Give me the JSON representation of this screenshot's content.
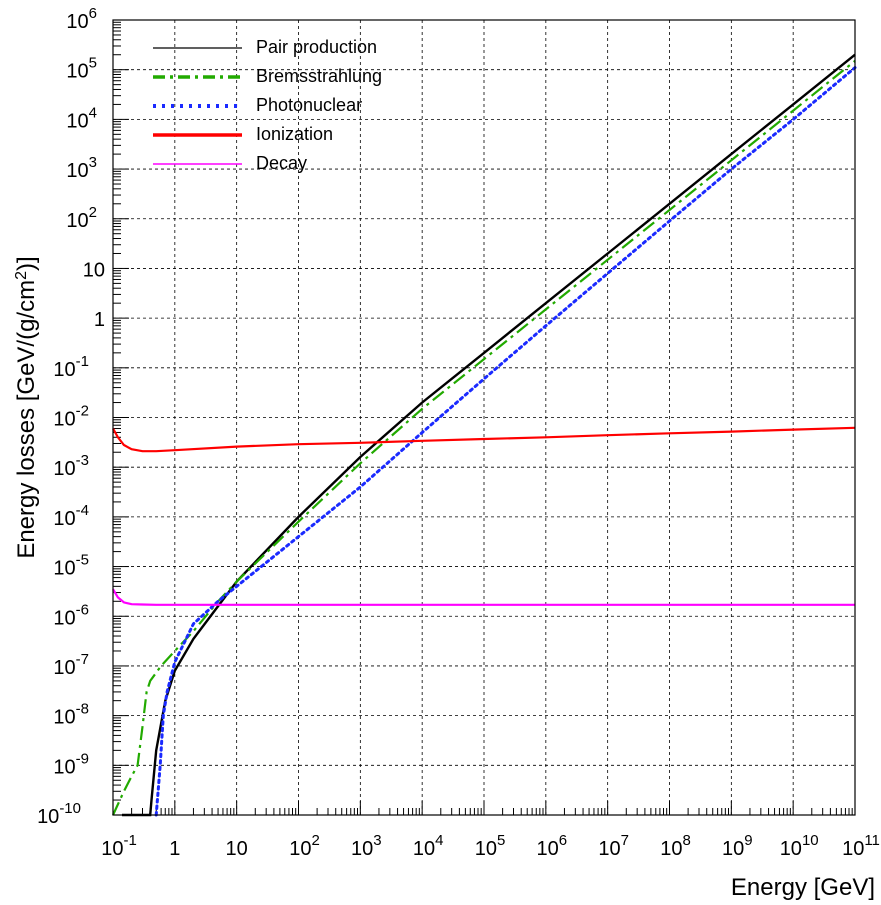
{
  "chart_data": {
    "type": "line",
    "title": "",
    "xlabel": "Energy [GeV]",
    "ylabel": "Energy losses [GeV/(g/cm2)]",
    "ylabel_parts": {
      "main": "Energy losses [GeV/(g/cm",
      "sup": "2",
      "tail": ")]"
    },
    "x_scale": "log",
    "y_scale": "log",
    "xlim": [
      0.1,
      100000000000.0
    ],
    "ylim": [
      1e-10,
      1000000.0
    ],
    "grid": true,
    "legend_position": "top-left",
    "x_ticks": [
      {
        "value": 0.1,
        "base": "10",
        "sup": "-1"
      },
      {
        "value": 1,
        "base": "1",
        "sup": ""
      },
      {
        "value": 10,
        "base": "10",
        "sup": ""
      },
      {
        "value": 100,
        "base": "10",
        "sup": "2"
      },
      {
        "value": 1000,
        "base": "10",
        "sup": "3"
      },
      {
        "value": 10000,
        "base": "10",
        "sup": "4"
      },
      {
        "value": 100000,
        "base": "10",
        "sup": "5"
      },
      {
        "value": 1000000,
        "base": "10",
        "sup": "6"
      },
      {
        "value": 10000000,
        "base": "10",
        "sup": "7"
      },
      {
        "value": 100000000,
        "base": "10",
        "sup": "8"
      },
      {
        "value": 1000000000,
        "base": "10",
        "sup": "9"
      },
      {
        "value": 10000000000,
        "base": "10",
        "sup": "10"
      },
      {
        "value": 100000000000,
        "base": "10",
        "sup": "11"
      }
    ],
    "y_ticks": [
      {
        "value": 1e-10,
        "base": "10",
        "sup": "-10"
      },
      {
        "value": 1e-09,
        "base": "10",
        "sup": "-9"
      },
      {
        "value": 1e-08,
        "base": "10",
        "sup": "-8"
      },
      {
        "value": 1e-07,
        "base": "10",
        "sup": "-7"
      },
      {
        "value": 1e-06,
        "base": "10",
        "sup": "-6"
      },
      {
        "value": 1e-05,
        "base": "10",
        "sup": "-5"
      },
      {
        "value": 0.0001,
        "base": "10",
        "sup": "-4"
      },
      {
        "value": 0.001,
        "base": "10",
        "sup": "-3"
      },
      {
        "value": 0.01,
        "base": "10",
        "sup": "-2"
      },
      {
        "value": 0.1,
        "base": "10",
        "sup": "-1"
      },
      {
        "value": 1,
        "base": "1",
        "sup": ""
      },
      {
        "value": 10,
        "base": "10",
        "sup": ""
      },
      {
        "value": 100,
        "base": "10",
        "sup": "2"
      },
      {
        "value": 1000,
        "base": "10",
        "sup": "3"
      },
      {
        "value": 10000,
        "base": "10",
        "sup": "4"
      },
      {
        "value": 100000,
        "base": "10",
        "sup": "5"
      },
      {
        "value": 1000000,
        "base": "10",
        "sup": "6"
      }
    ],
    "series": [
      {
        "name": "Pair production",
        "color": "#000000",
        "style": "solid",
        "x": [
          0.14,
          0.4,
          0.42,
          0.5,
          0.7,
          1,
          2,
          5,
          10,
          100,
          1000,
          10000,
          100000,
          1000000,
          10000000,
          100000000,
          1000000000,
          10000000000,
          100000000000
        ],
        "y": [
          1e-10,
          1e-10,
          2e-10,
          2e-09,
          2e-08,
          8e-08,
          3.5e-07,
          1.6e-06,
          5e-06,
          0.0001,
          0.0016,
          0.02,
          0.2,
          2,
          20,
          200,
          2000,
          20000,
          200000
        ]
      },
      {
        "name": "Bremsstrahlung",
        "color": "#22aa00",
        "style": "dashdot",
        "x": [
          0.1,
          0.15,
          0.2,
          0.25,
          0.3,
          0.35,
          0.4,
          0.6,
          1,
          2,
          5,
          10,
          100,
          1000,
          10000,
          100000,
          1000000,
          10000000,
          100000000,
          1000000000,
          10000000000,
          100000000000
        ],
        "y": [
          1e-10,
          3e-10,
          6e-10,
          1e-09,
          6e-09,
          3e-08,
          5e-08,
          1e-07,
          2e-07,
          5e-07,
          2e-06,
          5e-06,
          8e-05,
          0.0012,
          0.015,
          0.15,
          1.5,
          15,
          150,
          1500,
          15000,
          150000
        ]
      },
      {
        "name": "Photonuclear",
        "color": "#1a2aff",
        "style": "dotted",
        "x": [
          0.5,
          0.58,
          0.65,
          0.75,
          1,
          2,
          5,
          10,
          100,
          1000,
          10000,
          100000,
          1000000,
          10000000,
          100000000,
          1000000000,
          10000000000,
          100000000000
        ],
        "y": [
          1e-10,
          1e-09,
          1e-08,
          3e-08,
          1.2e-07,
          7e-07,
          2e-06,
          4e-06,
          4e-05,
          0.0004,
          0.005,
          0.06,
          0.7,
          8,
          90,
          1000,
          10000,
          110000
        ]
      },
      {
        "name": "Ionization",
        "color": "#ff0000",
        "style": "solid",
        "x": [
          0.1,
          0.12,
          0.15,
          0.2,
          0.3,
          0.5,
          1,
          10,
          100,
          1000,
          10000,
          100000,
          1000000,
          10000000,
          100000000,
          1000000000,
          10000000000,
          100000000000
        ],
        "y": [
          0.006,
          0.004,
          0.0028,
          0.0023,
          0.0021,
          0.0021,
          0.0022,
          0.0026,
          0.0029,
          0.0031,
          0.0034,
          0.0037,
          0.004,
          0.0044,
          0.0048,
          0.0052,
          0.0057,
          0.0062
        ]
      },
      {
        "name": "Decay",
        "color": "#ff00ff",
        "style": "solid",
        "x": [
          0.1,
          0.12,
          0.15,
          0.2,
          0.3,
          0.5,
          1,
          10,
          100,
          1000,
          10000,
          100000,
          1000000,
          10000000,
          100000000,
          1000000000,
          10000000000,
          100000000000
        ],
        "y": [
          3.5e-06,
          2.4e-06,
          1.9e-06,
          1.75e-06,
          1.72e-06,
          1.7e-06,
          1.7e-06,
          1.7e-06,
          1.7e-06,
          1.7e-06,
          1.7e-06,
          1.7e-06,
          1.7e-06,
          1.7e-06,
          1.7e-06,
          1.7e-06,
          1.7e-06,
          1.7e-06
        ]
      }
    ]
  }
}
